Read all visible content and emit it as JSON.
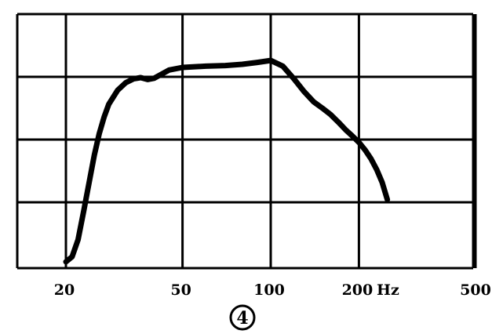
{
  "chart_data": {
    "type": "line",
    "x_scale": "log",
    "x_tick_labels": [
      "20",
      "50",
      "100",
      "200",
      "500"
    ],
    "x_unit": "Hz",
    "grid": true,
    "badge": "4",
    "series": [
      {
        "x": [
          20,
          21,
          22,
          23,
          24,
          25,
          26,
          27,
          28,
          30,
          32,
          34,
          36,
          38,
          40,
          45,
          50,
          60,
          70,
          80,
          90,
          100,
          110,
          120,
          130,
          140,
          150,
          160,
          170,
          180,
          190,
          200,
          210,
          220,
          230,
          240,
          250
        ],
        "y": [
          0.1,
          0.18,
          0.45,
          0.9,
          1.35,
          1.78,
          2.12,
          2.38,
          2.58,
          2.8,
          2.92,
          2.98,
          3.0,
          2.97,
          2.99,
          3.12,
          3.16,
          3.18,
          3.19,
          3.21,
          3.24,
          3.27,
          3.18,
          2.98,
          2.78,
          2.62,
          2.52,
          2.42,
          2.3,
          2.18,
          2.08,
          1.98,
          1.86,
          1.72,
          1.55,
          1.35,
          1.08
        ]
      }
    ]
  }
}
